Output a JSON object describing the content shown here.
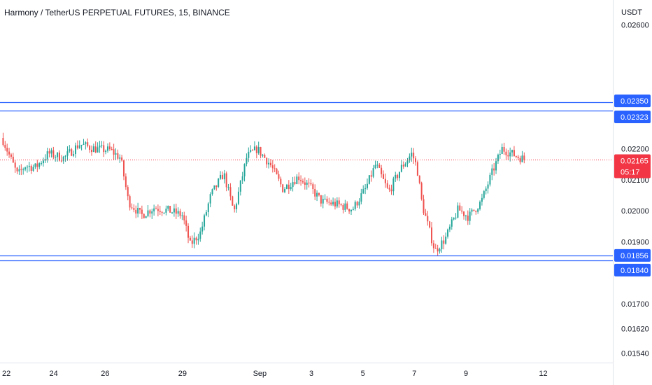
{
  "header": {
    "title": "Harmony / TetherUS PERPETUAL FUTURES, 15, BINANCE"
  },
  "chart_data": {
    "type": "candlestick",
    "currency": "USDT",
    "y_ticks": [
      0.026,
      0.022,
      0.021,
      0.02,
      0.019,
      0.017,
      0.0162,
      0.0154
    ],
    "y_tick_labels": [
      "0.02600",
      "0.02200",
      "0.02100",
      "0.02000",
      "0.01900",
      "0.01700",
      "0.01620",
      "0.01540"
    ],
    "x_labels": [
      "22",
      "24",
      "26",
      "29",
      "Sep",
      "3",
      "5",
      "7",
      "9",
      "12"
    ],
    "x_label_positions": [
      0,
      2,
      4,
      7,
      10,
      12,
      14,
      16,
      18,
      21
    ],
    "ylim": [
      0.0151,
      0.0268
    ],
    "xlim": [
      0,
      23.7
    ],
    "price_path": [
      [
        0.0,
        0.02235
      ],
      [
        0.6,
        0.02115
      ],
      [
        0.9,
        0.02145
      ],
      [
        1.3,
        0.0214
      ],
      [
        1.8,
        0.02185
      ],
      [
        2.4,
        0.0217
      ],
      [
        3.0,
        0.02215
      ],
      [
        3.6,
        0.022
      ],
      [
        4.2,
        0.02195
      ],
      [
        4.6,
        0.0217
      ],
      [
        4.9,
        0.0203
      ],
      [
        5.4,
        0.01985
      ],
      [
        5.9,
        0.0201
      ],
      [
        6.5,
        0.02
      ],
      [
        7.0,
        0.01985
      ],
      [
        7.3,
        0.0189
      ],
      [
        7.7,
        0.0193
      ],
      [
        8.1,
        0.0205
      ],
      [
        8.6,
        0.0212
      ],
      [
        9.0,
        0.01995
      ],
      [
        9.5,
        0.02175
      ],
      [
        9.9,
        0.022
      ],
      [
        10.4,
        0.0215
      ],
      [
        10.9,
        0.0207
      ],
      [
        11.5,
        0.0211
      ],
      [
        11.9,
        0.0208
      ],
      [
        12.4,
        0.0203
      ],
      [
        13.0,
        0.0202
      ],
      [
        13.6,
        0.02005
      ],
      [
        14.1,
        0.0207
      ],
      [
        14.5,
        0.0215
      ],
      [
        15.0,
        0.0206
      ],
      [
        15.5,
        0.0214
      ],
      [
        15.9,
        0.02185
      ],
      [
        16.1,
        0.0214
      ],
      [
        16.3,
        0.0202
      ],
      [
        16.8,
        0.0187
      ],
      [
        17.2,
        0.0191
      ],
      [
        17.7,
        0.02005
      ],
      [
        18.1,
        0.0198
      ],
      [
        18.6,
        0.0203
      ],
      [
        19.0,
        0.0212
      ],
      [
        19.4,
        0.022
      ],
      [
        20.0,
        0.02175
      ],
      [
        20.3,
        0.02165
      ]
    ],
    "series_colors": {
      "up": "#26a69a",
      "down": "#ef5350"
    },
    "horizontal_levels": [
      {
        "value": 0.0235,
        "label": "0.02350",
        "color": "#2962ff"
      },
      {
        "value": 0.02323,
        "label": "0.02323",
        "color": "#2962ff"
      },
      {
        "value": 0.01856,
        "label": "0.01856",
        "color": "#2962ff"
      },
      {
        "value": 0.0184,
        "label": "0.01840",
        "color": "#2962ff"
      }
    ],
    "last_price": {
      "value": 0.02165,
      "label": "0.02165",
      "countdown": "05:17",
      "color": "#f23645"
    }
  }
}
